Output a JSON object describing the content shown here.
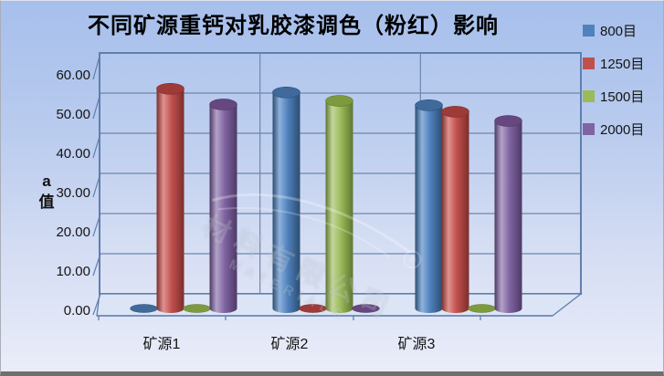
{
  "chart_data": {
    "type": "bar",
    "subtype": "3d-cylinder-clustered",
    "title": "不同矿源重钙对乳胶漆调色（粉红）影响",
    "ylabel_lines": [
      "a",
      "值"
    ],
    "categories": [
      "矿源1",
      "矿源2",
      "矿源3"
    ],
    "series": [
      {
        "name": "800目",
        "values": [
          0,
          53.8,
          50.6
        ],
        "color": "#4F81BD",
        "light": "#8FB2DC",
        "dark": "#2C4D71",
        "top": "#406A9C"
      },
      {
        "name": "1250目",
        "values": [
          54.7,
          0,
          49.0
        ],
        "color": "#C0504D",
        "light": "#DE9290",
        "dark": "#7D2E2C",
        "top": "#9E3B38"
      },
      {
        "name": "1500目",
        "values": [
          0,
          51.7,
          0
        ],
        "color": "#9BBB59",
        "light": "#C3D69B",
        "dark": "#5F7730",
        "top": "#7E9A3F"
      },
      {
        "name": "2000目",
        "values": [
          50.8,
          0,
          46.7
        ],
        "color": "#8064A2",
        "light": "#B3A2C7",
        "dark": "#4D3A66",
        "top": "#66477F"
      }
    ],
    "y_axis": {
      "min": 0,
      "max": 60,
      "step": 10,
      "tick_labels": [
        "0.00",
        "10.00",
        "20.00",
        "30.00",
        "40.00",
        "50.00",
        "60.00"
      ]
    },
    "legend_position": "right",
    "grid": true,
    "colors": {
      "gridline": "#6c87ae",
      "wall_border": "#5f7fae",
      "floor_fill": "#dce5f5",
      "background_top": "#a6bfec",
      "background_bottom": "#eaedf9",
      "frame_bottom": "#6f6f6f"
    }
  },
  "watermark": {
    "line1": "材料有限公司",
    "line2": "MATERIALS",
    "registered": "®"
  }
}
